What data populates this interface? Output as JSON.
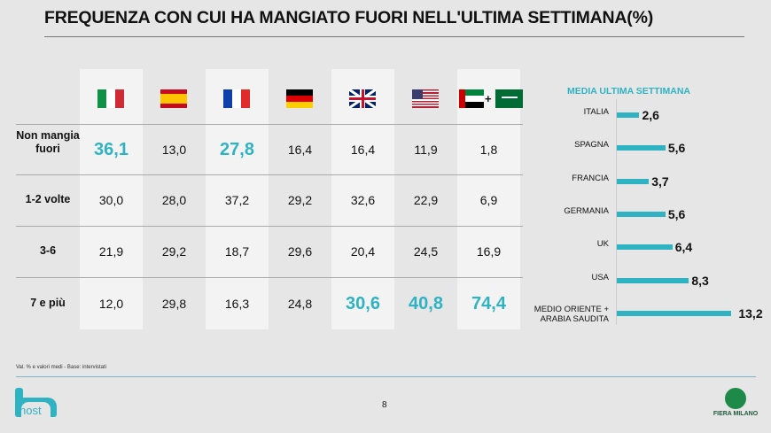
{
  "title": "FREQUENZA CON CUI HA MANGIATO FUORI NELL'ULTIMA SETTIMANA(%)",
  "table": {
    "columns": [
      "Italia",
      "Spagna",
      "Francia",
      "Germania",
      "UK",
      "USA",
      "Medio Oriente + Arabia Saudita"
    ],
    "plus": "+",
    "rows": [
      {
        "label": "Non mangia fuori",
        "values": [
          "36,1",
          "13,0",
          "27,8",
          "16,4",
          "16,4",
          "11,9",
          "1,8"
        ],
        "highlight": [
          0,
          2
        ]
      },
      {
        "label": "1-2 volte",
        "values": [
          "30,0",
          "28,0",
          "37,2",
          "29,2",
          "32,6",
          "22,9",
          "6,9"
        ],
        "highlight": []
      },
      {
        "label": "3-6",
        "values": [
          "21,9",
          "29,2",
          "18,7",
          "29,6",
          "20,4",
          "24,5",
          "16,9"
        ],
        "highlight": []
      },
      {
        "label": "7 e più",
        "values": [
          "12,0",
          "29,8",
          "16,3",
          "24,8",
          "30,6",
          "40,8",
          "74,4"
        ],
        "highlight": [
          4,
          5,
          6
        ]
      }
    ]
  },
  "chart_data": {
    "type": "bar",
    "title": "MEDIA ULTIMA SETTIMANA",
    "categories": [
      "ITALIA",
      "SPAGNA",
      "FRANCIA",
      "GERMANIA",
      "UK",
      "USA",
      "MEDIO ORIENTE + ARABIA SAUDITA"
    ],
    "values": [
      2.6,
      5.6,
      3.7,
      5.6,
      6.4,
      8.3,
      13.2
    ],
    "labels": [
      "2,6",
      "5,6",
      "3,7",
      "5,6",
      "6,4",
      "8,3",
      "13,2"
    ],
    "color": "#2fb3c3"
  },
  "footnote": "Val. % e valori medi - Base: intervistati",
  "page_number": "8",
  "logos": {
    "left": "host",
    "right": "FIERA MILANO"
  }
}
